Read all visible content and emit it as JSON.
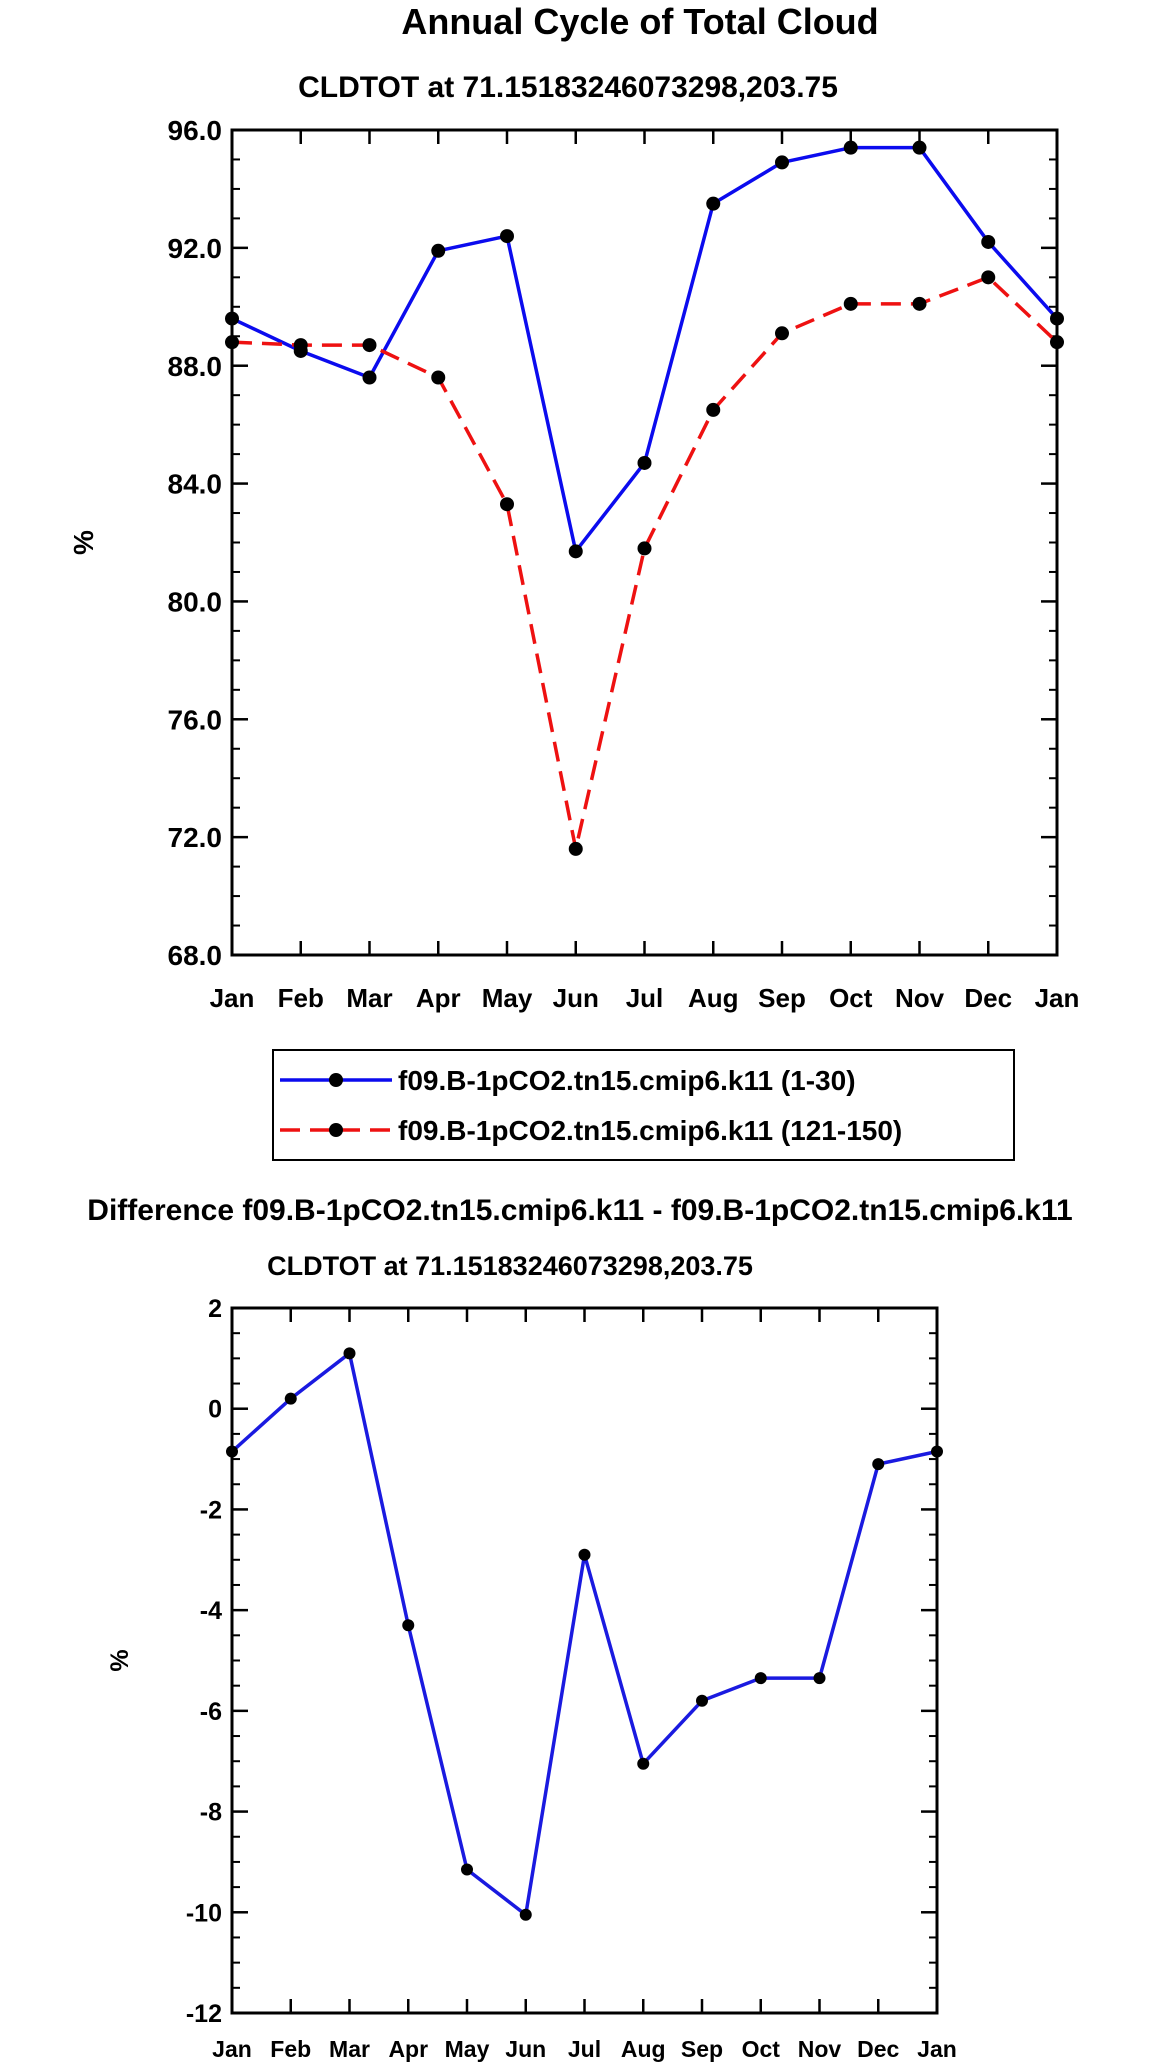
{
  "figure": {
    "main_title": "Annual Cycle of Total Cloud",
    "diff_title": "Difference f09.B-1pCO2.tn15.cmip6.k11 - f09.B-1pCO2.tn15.cmip6.k11"
  },
  "colors": {
    "series_1": "#0b0bee",
    "series_2": "#ee1111",
    "diff": "#1a1ae0",
    "marker": "#000000"
  },
  "chart_data": [
    {
      "type": "line",
      "title": "CLDTOT at 71.15183246073298,203.75",
      "xlabel": "",
      "ylabel": "%",
      "categories": [
        "Jan",
        "Feb",
        "Mar",
        "Apr",
        "May",
        "Jun",
        "Jul",
        "Aug",
        "Sep",
        "Oct",
        "Nov",
        "Dec",
        "Jan"
      ],
      "ylim": [
        68.0,
        96.0
      ],
      "yticks": [
        68.0,
        72.0,
        76.0,
        80.0,
        84.0,
        88.0,
        92.0,
        96.0
      ],
      "ytick_labels": [
        "68.0",
        "72.0",
        "76.0",
        "80.0",
        "84.0",
        "88.0",
        "92.0",
        "96.0"
      ],
      "grid": false,
      "legend_position": "below",
      "series": [
        {
          "name": "f09.B-1pCO2.tn15.cmip6.k11 (1-30)",
          "style": "solid",
          "values": [
            89.6,
            88.5,
            87.6,
            91.9,
            92.4,
            81.7,
            84.7,
            93.5,
            94.9,
            95.4,
            95.4,
            92.2,
            89.6
          ]
        },
        {
          "name": "f09.B-1pCO2.tn15.cmip6.k11 (121-150)",
          "style": "dashed",
          "values": [
            88.8,
            88.7,
            88.7,
            87.6,
            83.3,
            71.6,
            81.8,
            86.5,
            89.1,
            90.1,
            90.1,
            91.0,
            88.8
          ]
        }
      ]
    },
    {
      "type": "line",
      "title": "CLDTOT at 71.15183246073298,203.75",
      "xlabel": "",
      "ylabel": "%",
      "categories": [
        "Jan",
        "Feb",
        "Mar",
        "Apr",
        "May",
        "Jun",
        "Jul",
        "Aug",
        "Sep",
        "Oct",
        "Nov",
        "Dec",
        "Jan"
      ],
      "ylim": [
        -12,
        2
      ],
      "yticks": [
        -12,
        -10,
        -8,
        -6,
        -4,
        -2,
        0,
        2
      ],
      "ytick_labels": [
        "-12",
        "-10",
        "-8",
        "-6",
        "-4",
        "-2",
        "0",
        "2"
      ],
      "grid": false,
      "series": [
        {
          "name": "difference",
          "style": "solid",
          "values": [
            -0.85,
            0.2,
            1.1,
            -4.3,
            -9.15,
            -10.05,
            -2.9,
            -7.05,
            -5.8,
            -5.35,
            -5.35,
            -1.1,
            -0.85
          ]
        }
      ]
    }
  ]
}
